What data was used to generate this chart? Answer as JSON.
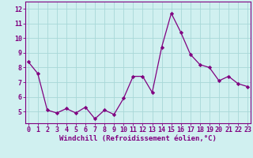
{
  "x": [
    0,
    1,
    2,
    3,
    4,
    5,
    6,
    7,
    8,
    9,
    10,
    11,
    12,
    13,
    14,
    15,
    16,
    17,
    18,
    19,
    20,
    21,
    22,
    23
  ],
  "y": [
    8.4,
    7.6,
    5.1,
    4.9,
    5.2,
    4.9,
    5.3,
    4.5,
    5.1,
    4.8,
    5.9,
    7.4,
    7.4,
    6.3,
    9.4,
    11.7,
    10.4,
    8.9,
    8.2,
    8.0,
    7.1,
    7.4,
    6.9,
    6.7
  ],
  "line_color": "#800080",
  "marker": "D",
  "marker_size": 2.2,
  "bg_color": "#d0f0f0",
  "grid_color": "#a8d8d8",
  "xlabel": "Windchill (Refroidissement éolien,°C)",
  "ylabel": "",
  "xlim": [
    -0.3,
    23.3
  ],
  "ylim": [
    4.2,
    12.5
  ],
  "yticks": [
    5,
    6,
    7,
    8,
    9,
    10,
    11,
    12
  ],
  "xticks": [
    0,
    1,
    2,
    3,
    4,
    5,
    6,
    7,
    8,
    9,
    10,
    11,
    12,
    13,
    14,
    15,
    16,
    17,
    18,
    19,
    20,
    21,
    22,
    23
  ],
  "tick_color": "#800080",
  "label_fontsize": 6.5,
  "tick_fontsize": 6.0,
  "spine_color": "#800080",
  "axis_bg_color": "#d0f0f0"
}
